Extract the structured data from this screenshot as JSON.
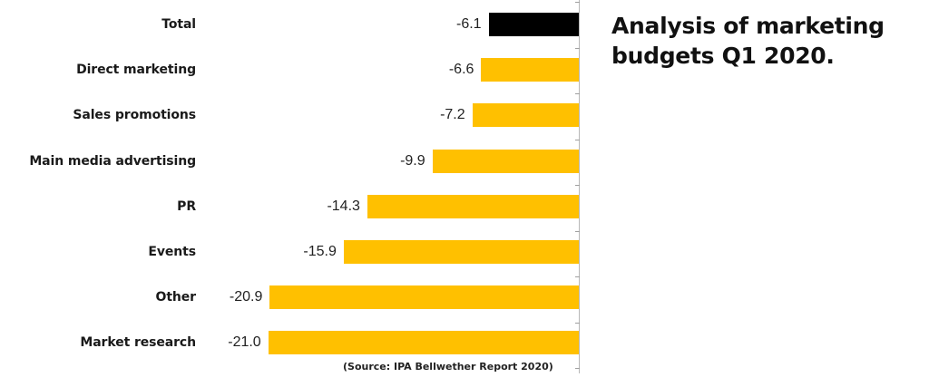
{
  "title": "Analysis of marketing budgets Q1 2020.",
  "source": "(Source: IPA Bellwether Report 2020)",
  "colors": {
    "total": "#000000",
    "category": "#FFC000",
    "axis": "#b8b8b8"
  },
  "rows": [
    {
      "label": "Total",
      "value": "-6.1"
    },
    {
      "label": "Direct marketing",
      "value": "-6.6"
    },
    {
      "label": "Sales promotions",
      "value": "-7.2"
    },
    {
      "label": "Main media advertising",
      "value": "-9.9"
    },
    {
      "label": "PR",
      "value": "-14.3"
    },
    {
      "label": "Events",
      "value": "-15.9"
    },
    {
      "label": "Other",
      "value": "-20.9"
    },
    {
      "label": "Market research",
      "value": "-21.0"
    }
  ],
  "chart_data": {
    "type": "bar",
    "orientation": "horizontal",
    "title": "Analysis of marketing budgets Q1 2020.",
    "categories": [
      "Total",
      "Direct marketing",
      "Sales promotions",
      "Main media advertising",
      "PR",
      "Events",
      "Other",
      "Market research"
    ],
    "values": [
      -6.1,
      -6.6,
      -7.2,
      -9.9,
      -14.3,
      -15.9,
      -20.9,
      -21.0
    ],
    "bar_colors": [
      "#000000",
      "#FFC000",
      "#FFC000",
      "#FFC000",
      "#FFC000",
      "#FFC000",
      "#FFC000",
      "#FFC000"
    ],
    "data_labels": true,
    "xlabel": "",
    "ylabel": "",
    "xlim": [
      -21.5,
      0
    ],
    "grid": false,
    "legend": null,
    "annotations": [
      "(Source: IPA Bellwether Report 2020)"
    ]
  }
}
